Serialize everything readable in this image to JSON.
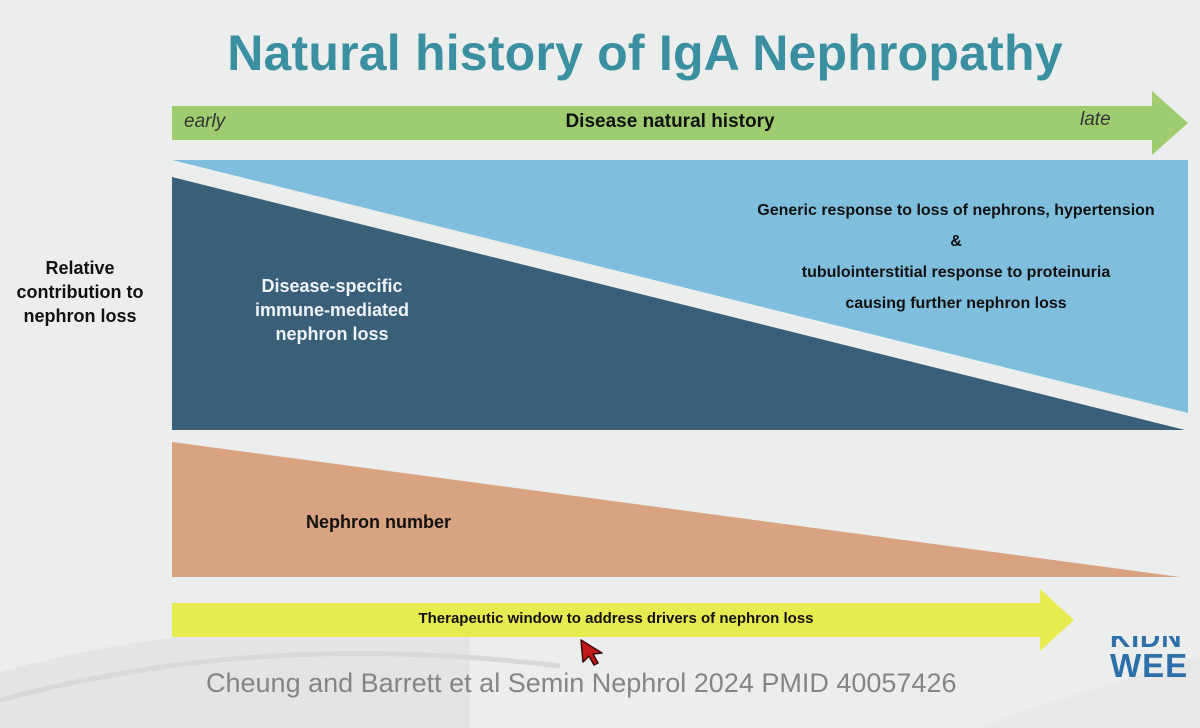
{
  "slide": {
    "title": "Natural history of IgA Nephropathy",
    "y_axis_label": "Relative contribution to nephron loss",
    "history_arrow": {
      "start_label": "early",
      "main_label": "Disease natural history",
      "end_label": "late"
    },
    "regions": {
      "immune_label": "Disease-specific immune-mediated nephron loss",
      "generic_line1": "Generic response to loss of nephrons, hypertension",
      "generic_line2": "&",
      "generic_line3": "tubulointerstitial response to proteinuria",
      "generic_line4": "causing further nephron loss",
      "nephron_label": "Nephron number"
    },
    "therapeutic_window": "Therapeutic window to address drivers of nephron loss",
    "citation": "Cheung and Barrett et al Semin Nephrol 2024 PMID 40057426",
    "logo": {
      "line1": "KIDN",
      "line2": "WEE"
    },
    "colors": {
      "title": "#3a8fa0",
      "green_arrow": "#a0cc70",
      "dark_blue": "#395f79",
      "light_blue": "#7fbfdd",
      "salmon": "#d9a280",
      "yellow_arrow": "#e6ec4f",
      "citation": "#858585",
      "logo": "#2d6fa8"
    },
    "icons": {
      "history_arrow": "arrow-right",
      "window_arrow": "arrow-right",
      "cursor": "pointer-cursor"
    }
  }
}
